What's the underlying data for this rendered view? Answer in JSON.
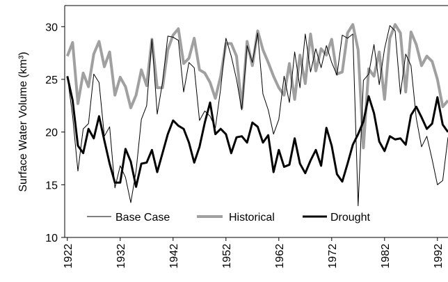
{
  "chart_data": {
    "type": "line",
    "y_label": "Surface Water Volume (km³)",
    "x": [
      1922,
      1923,
      1924,
      1925,
      1926,
      1927,
      1928,
      1929,
      1930,
      1931,
      1932,
      1933,
      1934,
      1935,
      1936,
      1937,
      1938,
      1939,
      1940,
      1941,
      1942,
      1943,
      1944,
      1945,
      1946,
      1947,
      1948,
      1949,
      1950,
      1951,
      1952,
      1953,
      1954,
      1955,
      1956,
      1957,
      1958,
      1959,
      1960,
      1961,
      1962,
      1963,
      1964,
      1965,
      1966,
      1967,
      1968,
      1969,
      1970,
      1971,
      1972,
      1973,
      1974,
      1975,
      1976,
      1977,
      1978,
      1979,
      1980,
      1981,
      1982,
      1983,
      1984,
      1985,
      1986,
      1987,
      1988,
      1989,
      1990,
      1991,
      1992,
      1993,
      1994
    ],
    "series": [
      {
        "name": "Base Case",
        "color": "#000000",
        "width": 1,
        "values": [
          25.3,
          21.5,
          16.3,
          20.3,
          20.8,
          25.5,
          24.7,
          19.6,
          20.5,
          14.7,
          16.8,
          15.7,
          13.3,
          16.3,
          21.2,
          22.5,
          28.8,
          21.7,
          24.7,
          29.1,
          29,
          28.7,
          23.8,
          26.6,
          26.1,
          21.1,
          22,
          21.5,
          20.4,
          24.1,
          28.9,
          27.2,
          25,
          22.1,
          28.2,
          26.6,
          29.4,
          23.6,
          22.1,
          19.8,
          21.2,
          25.3,
          22.8,
          27.6,
          24.2,
          29.3,
          25.7,
          27.9,
          26.1,
          28.2,
          26.6,
          25.4,
          29.2,
          28.9,
          29.3,
          13,
          24.9,
          25.5,
          28.3,
          24.5,
          27.9,
          30.1,
          29.6,
          23.6,
          27.4,
          26.3,
          21.3,
          18.6,
          19.6,
          17.4,
          15,
          15.4,
          19.5
        ]
      },
      {
        "name": "Historical",
        "color": "#a0a0a0",
        "width": 4,
        "values": [
          27.2,
          28.5,
          22.7,
          25.6,
          24.3,
          27.4,
          28.6,
          26.2,
          27.6,
          23.5,
          25.2,
          24.3,
          22.3,
          23.5,
          25.9,
          24.4,
          28.8,
          24.2,
          24.2,
          27.8,
          29.2,
          29.8,
          26.5,
          27,
          28.9,
          25.9,
          25.6,
          24.7,
          23.2,
          25.3,
          28.4,
          28.4,
          27.2,
          22.3,
          28.6,
          26.3,
          29.6,
          27.8,
          26.6,
          25.3,
          24.2,
          23.5,
          26.5,
          23.1,
          27.3,
          24.6,
          29.3,
          25.8,
          27.9,
          27.3,
          28.8,
          25.5,
          25.7,
          29.4,
          30.2,
          27.8,
          18.5,
          26,
          25.3,
          27.6,
          23.1,
          28.9,
          30.2,
          29.4,
          23.8,
          29.5,
          28.3,
          26.3,
          27.2,
          26.7,
          25,
          22.4,
          23
        ]
      },
      {
        "name": "Drought",
        "color": "#000000",
        "width": 3,
        "values": [
          25.3,
          23,
          18.7,
          18,
          20.3,
          19.4,
          21.5,
          19.2,
          17,
          15.2,
          15.2,
          18.4,
          17.2,
          14.8,
          17,
          17.1,
          18.3,
          16.2,
          18,
          19.8,
          21.1,
          20.6,
          20.3,
          19,
          17.1,
          18.6,
          20.9,
          22.8,
          19.8,
          20.3,
          19.8,
          18,
          19.5,
          19.6,
          19,
          20.9,
          20.5,
          19,
          19.7,
          16.2,
          18.3,
          16.7,
          16.9,
          19.4,
          17,
          16.1,
          17.3,
          18.3,
          16.8,
          20.4,
          18.7,
          16,
          15.3,
          17,
          18.8,
          19.8,
          21,
          23.4,
          21.8,
          19.1,
          18.2,
          19.6,
          19.3,
          19.4,
          18.8,
          21.6,
          22.4,
          21.4,
          20.3,
          20.8,
          23.3,
          20.7,
          20
        ]
      }
    ],
    "xlim": [
      1921.5,
      1994
    ],
    "ylim": [
      10,
      32
    ],
    "xticks": [
      1922,
      1932,
      1942,
      1952,
      1962,
      1972,
      1982,
      1992
    ],
    "yticks": [
      10,
      15,
      20,
      25,
      30
    ],
    "legend": "bottom"
  }
}
